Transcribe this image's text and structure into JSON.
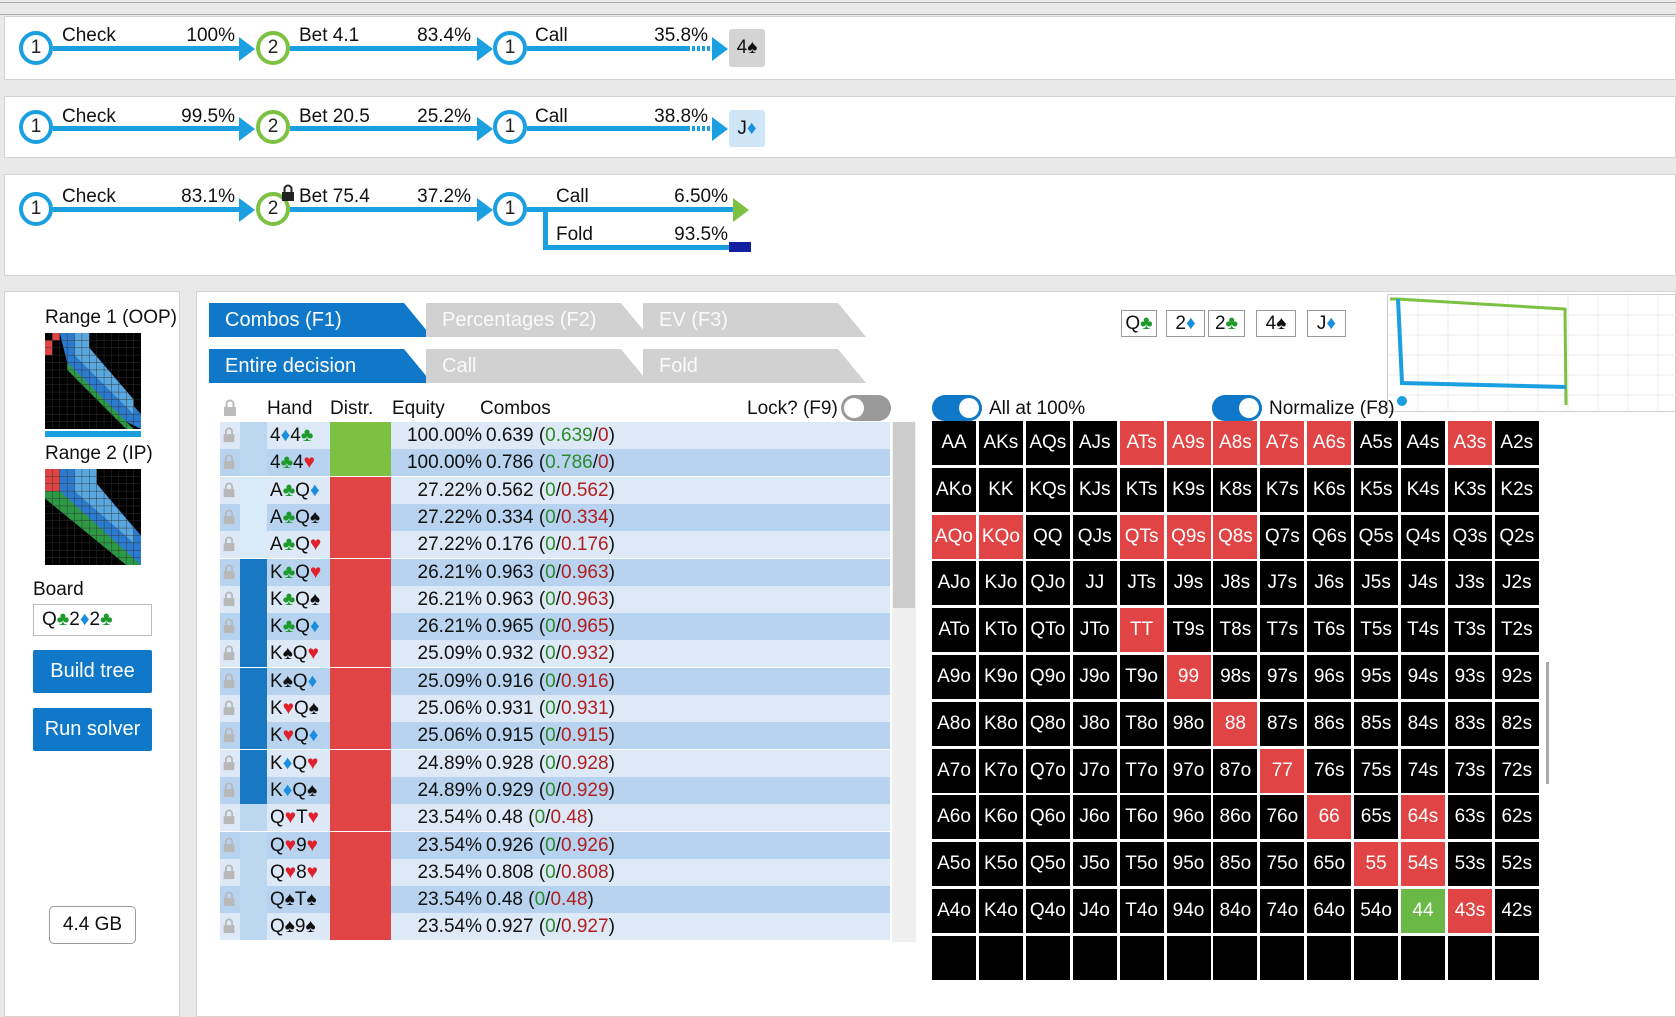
{
  "lines": [
    {
      "n1": "1",
      "a1": "Check",
      "p1": "100%",
      "n2": "2",
      "a2": "Bet 4.1",
      "p2": "83.4%",
      "n3": "1",
      "a3": "Call",
      "p3": "35.8%",
      "card_rank": "4",
      "card_suit": "♠"
    },
    {
      "n1": "1",
      "a1": "Check",
      "p1": "99.5%",
      "n2": "2",
      "a2": "Bet 20.5",
      "p2": "25.2%",
      "n3": "1",
      "a3": "Call",
      "p3": "38.8%",
      "card_rank": "J",
      "card_suit": "♦"
    },
    {
      "n1": "1",
      "a1": "Check",
      "p1": "83.1%",
      "n2": "2",
      "a2": "Bet 75.4",
      "p2": "37.2%",
      "n3": "1",
      "a3": "Call",
      "p3": "6.50%",
      "a4": "Fold",
      "p4": "93.5%"
    }
  ],
  "left": {
    "range1": "Range 1 (OOP)",
    "range2": "Range 2 (IP)",
    "board_label": "Board",
    "board_value": "Q♣2♦2♣",
    "build": "Build tree",
    "run": "Run solver",
    "memory": "4.4 GB"
  },
  "tabs": {
    "top": [
      "Combos (F1)",
      "Percentages (F2)",
      "EV (F3)"
    ],
    "sub": [
      "Entire decision",
      "Call",
      "Fold"
    ]
  },
  "table": {
    "headers": {
      "hand": "Hand",
      "distr": "Distr.",
      "equity": "Equity",
      "combos": "Combos",
      "lock": "Lock? (F9)"
    },
    "rows": [
      {
        "h": "4♦4♣",
        "eq": "100.00%",
        "c": "0.639",
        "a": "0.639",
        "b": "0",
        "d": "green",
        "s": "light"
      },
      {
        "h": "4♣4♥",
        "eq": "100.00%",
        "c": "0.786",
        "a": "0.786",
        "b": "0",
        "d": "green",
        "s": "light"
      },
      {
        "h": "A♣Q♦",
        "eq": "27.22%",
        "c": "0.562",
        "a": "0",
        "b": "0.562",
        "d": "red",
        "s": "pale"
      },
      {
        "h": "A♣Q♠",
        "eq": "27.22%",
        "c": "0.334",
        "a": "0",
        "b": "0.334",
        "d": "red",
        "s": "pale"
      },
      {
        "h": "A♣Q♥",
        "eq": "27.22%",
        "c": "0.176",
        "a": "0",
        "b": "0.176",
        "d": "red",
        "s": "pale"
      },
      {
        "h": "K♣Q♥",
        "eq": "26.21%",
        "c": "0.963",
        "a": "0",
        "b": "0.963",
        "d": "red",
        "s": "dark"
      },
      {
        "h": "K♣Q♠",
        "eq": "26.21%",
        "c": "0.963",
        "a": "0",
        "b": "0.963",
        "d": "red",
        "s": "dark"
      },
      {
        "h": "K♣Q♦",
        "eq": "26.21%",
        "c": "0.965",
        "a": "0",
        "b": "0.965",
        "d": "red",
        "s": "dark"
      },
      {
        "h": "K♠Q♥",
        "eq": "25.09%",
        "c": "0.932",
        "a": "0",
        "b": "0.932",
        "d": "red",
        "s": "dark"
      },
      {
        "h": "K♠Q♦",
        "eq": "25.09%",
        "c": "0.916",
        "a": "0",
        "b": "0.916",
        "d": "red",
        "s": "dark"
      },
      {
        "h": "K♥Q♠",
        "eq": "25.06%",
        "c": "0.931",
        "a": "0",
        "b": "0.931",
        "d": "red",
        "s": "dark"
      },
      {
        "h": "K♥Q♦",
        "eq": "25.06%",
        "c": "0.915",
        "a": "0",
        "b": "0.915",
        "d": "red",
        "s": "dark"
      },
      {
        "h": "K♦Q♥",
        "eq": "24.89%",
        "c": "0.928",
        "a": "0",
        "b": "0.928",
        "d": "red",
        "s": "dark"
      },
      {
        "h": "K♦Q♠",
        "eq": "24.89%",
        "c": "0.929",
        "a": "0",
        "b": "0.929",
        "d": "red",
        "s": "dark"
      },
      {
        "h": "Q♥T♥",
        "eq": "23.54%",
        "c": "0.48",
        "a": "0",
        "b": "0.48",
        "d": "red",
        "s": "light"
      },
      {
        "h": "Q♥9♥",
        "eq": "23.54%",
        "c": "0.926",
        "a": "0",
        "b": "0.926",
        "d": "red",
        "s": "light"
      },
      {
        "h": "Q♥8♥",
        "eq": "23.54%",
        "c": "0.808",
        "a": "0",
        "b": "0.808",
        "d": "red",
        "s": "light"
      },
      {
        "h": "Q♠T♠",
        "eq": "23.54%",
        "c": "0.48",
        "a": "0",
        "b": "0.48",
        "d": "red",
        "s": "light"
      },
      {
        "h": "Q♠9♠",
        "eq": "23.54%",
        "c": "0.927",
        "a": "0",
        "b": "0.927",
        "d": "red",
        "s": "light"
      }
    ]
  },
  "board_cards": [
    {
      "r": "Q",
      "s": "♣",
      "c": "cl"
    },
    {
      "r": "2",
      "s": "♦",
      "c": "di"
    },
    {
      "r": "2",
      "s": "♣",
      "c": "cl"
    },
    {
      "r": "4",
      "s": "♠",
      "c": "sp"
    },
    {
      "r": "J",
      "s": "♦",
      "c": "di"
    }
  ],
  "toggles": {
    "all100": "All at 100%",
    "normalize": "Normalize (F8)"
  },
  "grid": {
    "rows": [
      [
        "AA",
        "AKs",
        "AQs",
        "AJs",
        "ATs",
        "A9s",
        "A8s",
        "A7s",
        "A6s",
        "A5s",
        "A4s",
        "A3s",
        "A2s"
      ],
      [
        "AKo",
        "KK",
        "KQs",
        "KJs",
        "KTs",
        "K9s",
        "K8s",
        "K7s",
        "K6s",
        "K5s",
        "K4s",
        "K3s",
        "K2s"
      ],
      [
        "AQo",
        "KQo",
        "QQ",
        "QJs",
        "QTs",
        "Q9s",
        "Q8s",
        "Q7s",
        "Q6s",
        "Q5s",
        "Q4s",
        "Q3s",
        "Q2s"
      ],
      [
        "AJo",
        "KJo",
        "QJo",
        "JJ",
        "JTs",
        "J9s",
        "J8s",
        "J7s",
        "J6s",
        "J5s",
        "J4s",
        "J3s",
        "J2s"
      ],
      [
        "ATo",
        "KTo",
        "QTo",
        "JTo",
        "TT",
        "T9s",
        "T8s",
        "T7s",
        "T6s",
        "T5s",
        "T4s",
        "T3s",
        "T2s"
      ],
      [
        "A9o",
        "K9o",
        "Q9o",
        "J9o",
        "T9o",
        "99",
        "98s",
        "97s",
        "96s",
        "95s",
        "94s",
        "93s",
        "92s"
      ],
      [
        "A8o",
        "K8o",
        "Q8o",
        "J8o",
        "T8o",
        "98o",
        "88",
        "87s",
        "86s",
        "85s",
        "84s",
        "83s",
        "82s"
      ],
      [
        "A7o",
        "K7o",
        "Q7o",
        "J7o",
        "T7o",
        "97o",
        "87o",
        "77",
        "76s",
        "75s",
        "74s",
        "73s",
        "72s"
      ],
      [
        "A6o",
        "K6o",
        "Q6o",
        "J6o",
        "T6o",
        "96o",
        "86o",
        "76o",
        "66",
        "65s",
        "64s",
        "63s",
        "62s"
      ],
      [
        "A5o",
        "K5o",
        "Q5o",
        "J5o",
        "T5o",
        "95o",
        "85o",
        "75o",
        "65o",
        "55",
        "54s",
        "53s",
        "52s"
      ],
      [
        "A4o",
        "K4o",
        "Q4o",
        "J4o",
        "T4o",
        "94o",
        "84o",
        "74o",
        "64o",
        "54o",
        "44",
        "43s",
        "42s"
      ]
    ],
    "red": [
      "ATs",
      "A9s",
      "A8s",
      "A7s",
      "A6s",
      "A3s",
      "AQo",
      "KQo",
      "QTs",
      "Q9s",
      "Q8s",
      "TT",
      "99",
      "88",
      "77",
      "66",
      "64s",
      "55",
      "54s",
      "43s"
    ],
    "green": [
      "44"
    ]
  },
  "colors": {
    "blue": "#1a9fe0",
    "green": "#7cc142",
    "red": "#e04444",
    "tab": "#1078c8"
  }
}
